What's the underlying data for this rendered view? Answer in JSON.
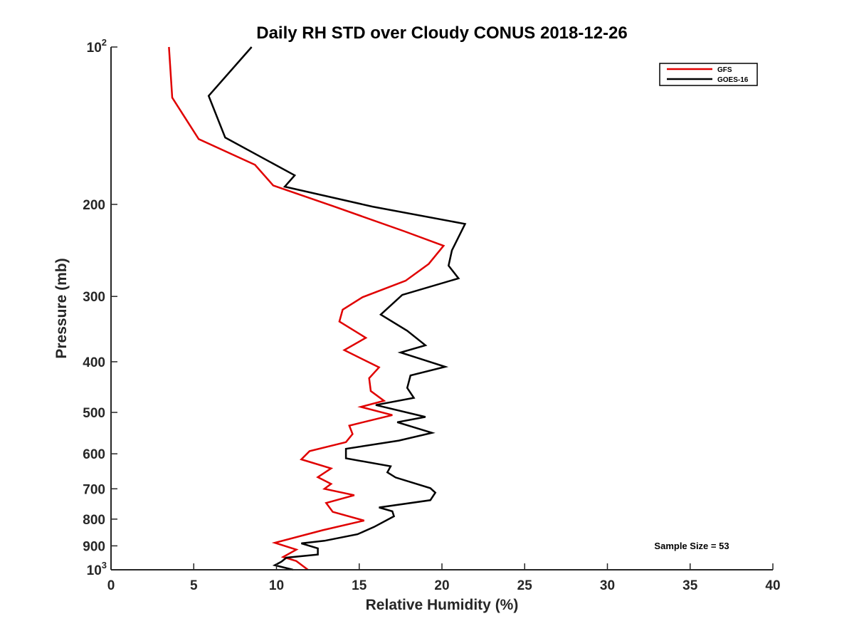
{
  "chart_data": {
    "type": "line",
    "title": "Daily RH STD over Cloudy CONUS 2018-12-26",
    "xlabel": "Relative Humidity (%)",
    "ylabel": "Pressure (mb)",
    "xlim": [
      0,
      40
    ],
    "ylim": [
      100,
      1000
    ],
    "yscale": "log",
    "y_reversed": true,
    "grid": false,
    "legend_position": "top-right",
    "x_ticks": [
      "0",
      "5",
      "10",
      "15",
      "20",
      "25",
      "30",
      "35",
      "40"
    ],
    "y_ticks": [
      {
        "value": 100,
        "base": "10",
        "exp": "2"
      },
      {
        "value": 200,
        "base": "200",
        "exp": ""
      },
      {
        "value": 300,
        "base": "300",
        "exp": ""
      },
      {
        "value": 400,
        "base": "400",
        "exp": ""
      },
      {
        "value": 500,
        "base": "500",
        "exp": ""
      },
      {
        "value": 600,
        "base": "600",
        "exp": ""
      },
      {
        "value": 700,
        "base": "700",
        "exp": ""
      },
      {
        "value": 800,
        "base": "800",
        "exp": ""
      },
      {
        "value": 900,
        "base": "900",
        "exp": ""
      },
      {
        "value": 1000,
        "base": "10",
        "exp": "3"
      }
    ],
    "annotation": "Sample Size = 53",
    "series": [
      {
        "name": "GFS",
        "color": "#e00000",
        "points": [
          [
            3.5,
            100
          ],
          [
            3.7,
            125
          ],
          [
            5.3,
            150
          ],
          [
            8.7,
            168
          ],
          [
            9.8,
            184
          ],
          [
            13.5,
            202
          ],
          [
            17.7,
            225
          ],
          [
            20.1,
            240
          ],
          [
            19.2,
            260
          ],
          [
            17.8,
            280
          ],
          [
            15.2,
            301
          ],
          [
            14.0,
            318
          ],
          [
            13.8,
            335
          ],
          [
            15.4,
            360
          ],
          [
            14.1,
            380
          ],
          [
            16.2,
            410
          ],
          [
            15.6,
            430
          ],
          [
            15.7,
            455
          ],
          [
            16.5,
            475
          ],
          [
            15.1,
            488
          ],
          [
            17.0,
            506
          ],
          [
            14.4,
            530
          ],
          [
            14.6,
            550
          ],
          [
            14.2,
            570
          ],
          [
            12.0,
            593
          ],
          [
            11.5,
            615
          ],
          [
            13.3,
            640
          ],
          [
            12.5,
            665
          ],
          [
            13.3,
            685
          ],
          [
            12.9,
            700
          ],
          [
            14.7,
            720
          ],
          [
            13.0,
            745
          ],
          [
            13.4,
            775
          ],
          [
            15.3,
            805
          ],
          [
            12.8,
            840
          ],
          [
            9.9,
            888
          ],
          [
            11.2,
            915
          ],
          [
            10.4,
            945
          ],
          [
            11.2,
            962
          ],
          [
            11.9,
            1000
          ]
        ]
      },
      {
        "name": "GOES-16",
        "color": "#000000",
        "points": [
          [
            8.5,
            100
          ],
          [
            5.9,
            124
          ],
          [
            6.9,
            149
          ],
          [
            11.1,
            176
          ],
          [
            10.5,
            185
          ],
          [
            15.8,
            202
          ],
          [
            21.4,
            218
          ],
          [
            20.6,
            245
          ],
          [
            20.4,
            262
          ],
          [
            21.0,
            277
          ],
          [
            17.6,
            298
          ],
          [
            16.3,
            325
          ],
          [
            17.9,
            349
          ],
          [
            19.0,
            372
          ],
          [
            17.5,
            384
          ],
          [
            20.2,
            409
          ],
          [
            18.1,
            425
          ],
          [
            17.9,
            449
          ],
          [
            18.3,
            469
          ],
          [
            16.0,
            484
          ],
          [
            19.0,
            510
          ],
          [
            17.3,
            522
          ],
          [
            19.4,
            547
          ],
          [
            17.4,
            566
          ],
          [
            14.2,
            587
          ],
          [
            14.2,
            612
          ],
          [
            16.9,
            634
          ],
          [
            16.7,
            651
          ],
          [
            17.2,
            666
          ],
          [
            19.3,
            698
          ],
          [
            19.6,
            712
          ],
          [
            19.3,
            736
          ],
          [
            16.2,
            760
          ],
          [
            17.0,
            773
          ],
          [
            17.1,
            790
          ],
          [
            15.9,
            828
          ],
          [
            14.9,
            855
          ],
          [
            12.9,
            880
          ],
          [
            11.5,
            890
          ],
          [
            12.5,
            910
          ],
          [
            12.5,
            935
          ],
          [
            10.6,
            948
          ],
          [
            10.3,
            965
          ],
          [
            9.9,
            980
          ],
          [
            11.0,
            1000
          ]
        ]
      }
    ]
  }
}
